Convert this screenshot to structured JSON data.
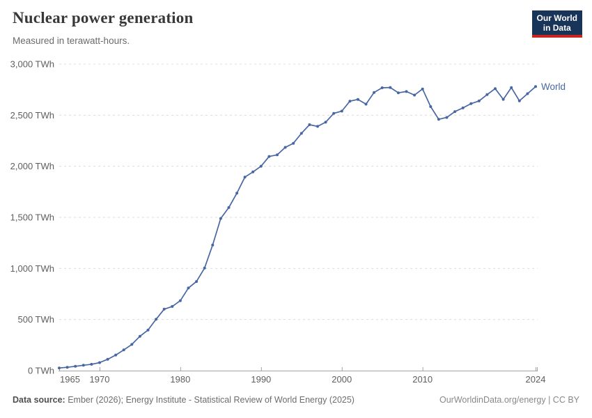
{
  "header": {
    "title": "Nuclear power generation",
    "subtitle": "Measured in terawatt-hours.",
    "logo": {
      "line1": "Our World",
      "line2": "in Data"
    }
  },
  "footer": {
    "source_label": "Data source:",
    "source_text": "Ember (2026); Energy Institute - Statistical Review of World Energy (2025)",
    "credit": "OurWorldinData.org/energy | CC BY"
  },
  "colors": {
    "line": "#4766a3",
    "grid": "#dcdcdc",
    "axis": "#a3a3a3",
    "tick_label": "#5e5e5e",
    "logo_bg": "#183459",
    "logo_accent": "#c7261f"
  },
  "chart_data": {
    "type": "line",
    "title": "Nuclear power generation",
    "unit": "TWh",
    "xlim": [
      1965,
      2024
    ],
    "ylim": [
      0,
      3000
    ],
    "grid": "horizontal-dashed",
    "legend_position": "end-of-line",
    "xticks": [
      {
        "v": 1965,
        "label": "1965"
      },
      {
        "v": 1970,
        "label": "1970"
      },
      {
        "v": 1980,
        "label": "1980"
      },
      {
        "v": 1990,
        "label": "1990"
      },
      {
        "v": 2000,
        "label": "2000"
      },
      {
        "v": 2010,
        "label": "2010"
      },
      {
        "v": 2024,
        "label": "2024"
      }
    ],
    "yticks": [
      {
        "v": 0,
        "label": "0 TWh"
      },
      {
        "v": 500,
        "label": "500 TWh"
      },
      {
        "v": 1000,
        "label": "1,000 TWh"
      },
      {
        "v": 1500,
        "label": "1,500 TWh"
      },
      {
        "v": 2000,
        "label": "2,000 TWh"
      },
      {
        "v": 2500,
        "label": "2,500 TWh"
      },
      {
        "v": 3000,
        "label": "3,000 TWh"
      }
    ],
    "series": [
      {
        "name": "World",
        "x": [
          1965,
          1966,
          1967,
          1968,
          1969,
          1970,
          1971,
          1972,
          1973,
          1974,
          1975,
          1976,
          1977,
          1978,
          1979,
          1980,
          1981,
          1982,
          1983,
          1984,
          1985,
          1986,
          1987,
          1988,
          1989,
          1990,
          1991,
          1992,
          1993,
          1994,
          1995,
          1996,
          1997,
          1998,
          1999,
          2000,
          2001,
          2002,
          2003,
          2004,
          2005,
          2006,
          2007,
          2008,
          2009,
          2010,
          2011,
          2012,
          2013,
          2014,
          2015,
          2016,
          2017,
          2018,
          2019,
          2020,
          2021,
          2022,
          2023,
          2024
        ],
        "values": [
          25.7,
          32.8,
          42.0,
          52.6,
          62.0,
          78.7,
          110.9,
          152.4,
          202.8,
          256.7,
          336.3,
          396.8,
          502.5,
          601.2,
          628.2,
          684.4,
          808.6,
          872.2,
          1003.7,
          1229.4,
          1489.3,
          1596.4,
          1736.5,
          1894.3,
          1944.6,
          2000.7,
          2096.1,
          2111.5,
          2185.5,
          2225.1,
          2322.5,
          2406.7,
          2390.5,
          2431.3,
          2517.8,
          2540.1,
          2637.2,
          2654.3,
          2608.2,
          2722.2,
          2767.9,
          2770.8,
          2719.1,
          2731.4,
          2696.8,
          2756.3,
          2584.2,
          2460.2,
          2477.7,
          2535.1,
          2571.4,
          2612.8,
          2639.4,
          2701.4,
          2760.0,
          2655.0,
          2770.0,
          2640.0,
          2710.0,
          2780.0
        ]
      }
    ]
  }
}
